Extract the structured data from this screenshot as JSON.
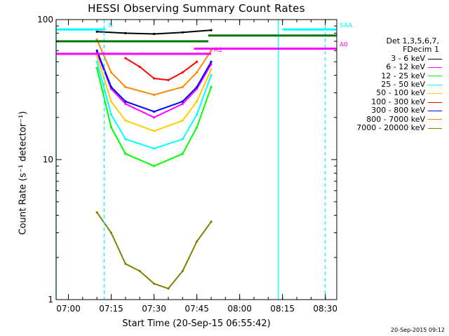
{
  "chart_data": {
    "type": "line",
    "title": "HESSI Observing Summary Count Rates",
    "xlabel": "Start Time (20-Sep-15 06:55:42)",
    "ylabel": "Count Rate (s⁻¹ detector⁻¹)",
    "y_scale": "log",
    "ylim": [
      1,
      100
    ],
    "xlim": [
      "06:55:42",
      "08:34:00"
    ],
    "x_ticks": [
      "07:00",
      "07:15",
      "07:30",
      "07:45",
      "08:00",
      "08:15",
      "08:30"
    ],
    "y_ticks": [
      "1",
      "10",
      "100"
    ],
    "legend_header": [
      "Det 1,3,5,6,7,",
      "FDecim 1"
    ],
    "legend_placement": "right, outside plot",
    "series": [
      {
        "name": "3 - 6 keV",
        "color": "#000000",
        "x": [
          "07:10",
          "07:20",
          "07:30",
          "07:40",
          "07:50"
        ],
        "values": [
          82,
          80,
          79,
          81,
          84
        ]
      },
      {
        "name": "6 - 12 keV",
        "color": "#ff00ff",
        "x": [
          "07:10",
          "07:15",
          "07:20",
          "07:30",
          "07:40",
          "07:45",
          "07:50"
        ],
        "values": [
          58,
          32,
          25,
          20,
          25,
          32,
          48
        ]
      },
      {
        "name": "12 - 25 keV",
        "color": "#00ff00",
        "x": [
          "07:10",
          "07:15",
          "07:20",
          "07:30",
          "07:40",
          "07:45",
          "07:50"
        ],
        "values": [
          45,
          17,
          11,
          9,
          11,
          17,
          33
        ]
      },
      {
        "name": "25 - 50 keV",
        "color": "#00ffff",
        "x": [
          "07:10",
          "07:15",
          "07:20",
          "07:30",
          "07:40",
          "07:45",
          "07:50"
        ],
        "values": [
          50,
          21,
          14,
          12,
          14,
          21,
          40
        ]
      },
      {
        "name": "50 - 100 keV",
        "color": "#ffcc00",
        "x": [
          "07:10",
          "07:15",
          "07:20",
          "07:30",
          "07:40",
          "07:45",
          "07:50"
        ],
        "values": [
          55,
          26,
          19,
          16,
          19,
          26,
          44
        ]
      },
      {
        "name": "100 - 300 keV",
        "color": "#ff0000",
        "x": [
          "07:20",
          "07:25",
          "07:30",
          "07:35",
          "07:40",
          "07:45"
        ],
        "values": [
          53,
          46,
          38,
          37,
          42,
          50
        ]
      },
      {
        "name": "300 - 800 keV",
        "color": "#0000ff",
        "x": [
          "07:10",
          "07:15",
          "07:20",
          "07:30",
          "07:40",
          "07:45",
          "07:50"
        ],
        "values": [
          60,
          33,
          26,
          22,
          26,
          33,
          50
        ]
      },
      {
        "name": "800 - 7000 keV",
        "color": "#ff8800",
        "x": [
          "07:10",
          "07:15",
          "07:20",
          "07:30",
          "07:40",
          "07:45",
          "07:50"
        ],
        "values": [
          72,
          42,
          33,
          29,
          33,
          42,
          60
        ]
      },
      {
        "name": "7000 - 20000 keV",
        "color": "#808000",
        "x": [
          "07:10",
          "07:15",
          "07:20",
          "07:25",
          "07:30",
          "07:35",
          "07:40",
          "07:45",
          "07:50"
        ],
        "values": [
          4.2,
          3.0,
          1.8,
          1.6,
          1.3,
          1.2,
          1.6,
          2.6,
          3.6
        ]
      }
    ],
    "flags": [
      {
        "label": "N",
        "color": "#00ffff",
        "value": 85,
        "x_start": "06:55:42",
        "x_end": "07:13:00"
      },
      {
        "label": "SAA",
        "color": "#00ffff",
        "value": 85,
        "x_start": "08:15:00",
        "x_end": "08:34:00"
      },
      {
        "label": "",
        "color": "#007700",
        "value": 77,
        "x_start": "07:49:00",
        "x_end": "08:34:00"
      },
      {
        "label": "",
        "color": "#007700",
        "value": 70,
        "x_start": "06:55:42",
        "x_end": "07:49:00"
      },
      {
        "label": "A0",
        "color": "#ff00ff",
        "value": 62,
        "x_start": "07:44:00",
        "x_end": "08:34:00"
      },
      {
        "label": "A1",
        "color": "#ff00ff",
        "value": 57,
        "x_start": "06:55:42",
        "x_end": "07:50:00"
      }
    ],
    "vertical_markers": [
      {
        "color": "#00ffff",
        "style": "solid",
        "x": "06:55:42"
      },
      {
        "color": "#00ffff",
        "style": "dashed",
        "x": "07:12:30"
      },
      {
        "color": "#00ffff",
        "style": "solid",
        "x": "08:13:30"
      },
      {
        "color": "#00ffff",
        "style": "dashed",
        "x": "08:30:00"
      }
    ],
    "data_gap": [
      "07:50",
      "08:34"
    ],
    "grid": false
  },
  "timestamp": "20-Sep-2015 09:12"
}
